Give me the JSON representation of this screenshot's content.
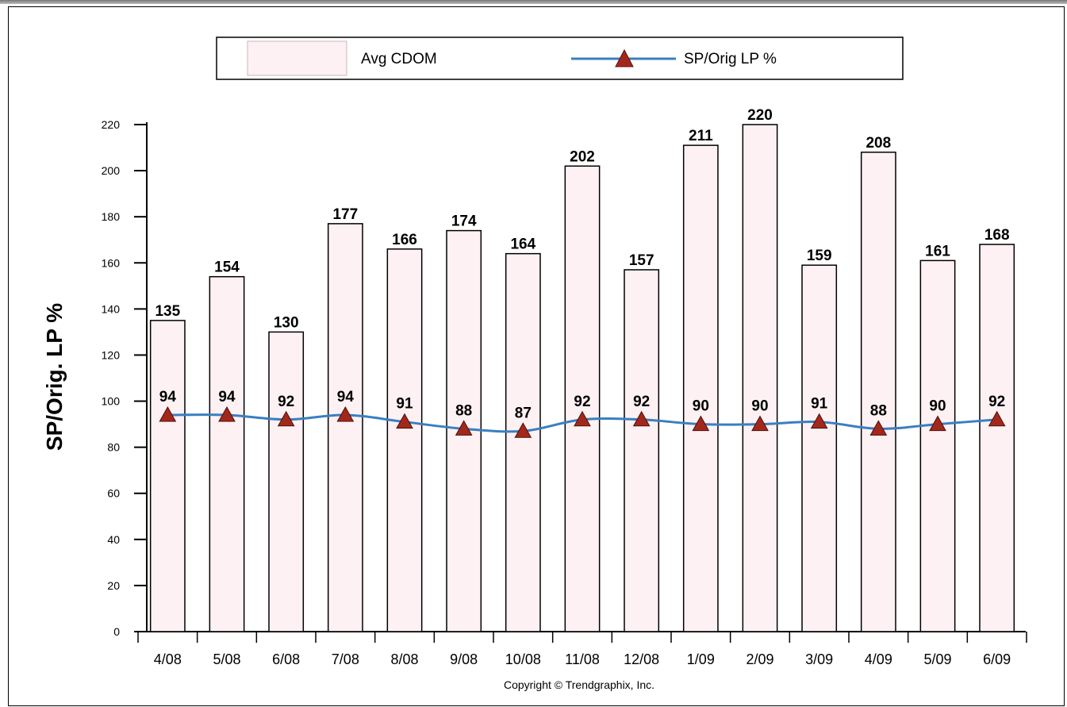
{
  "chart_data": {
    "type": "bar",
    "title": "",
    "xlabel": "",
    "ylabel": "SP/Orig. LP %",
    "ylim": [
      0,
      220
    ],
    "yticks": [
      0,
      20,
      40,
      60,
      80,
      100,
      120,
      140,
      160,
      180,
      200,
      220
    ],
    "grid": false,
    "legend_position": "top",
    "categories": [
      "4/08",
      "5/08",
      "6/08",
      "7/08",
      "8/08",
      "9/08",
      "10/08",
      "11/08",
      "12/08",
      "1/09",
      "2/09",
      "3/09",
      "4/09",
      "5/09",
      "6/09"
    ],
    "series": [
      {
        "name": "Avg CDOM",
        "kind": "bar",
        "color": "#fdf1f3",
        "values": [
          135,
          154,
          130,
          177,
          166,
          174,
          164,
          202,
          157,
          211,
          220,
          159,
          208,
          161,
          168
        ]
      },
      {
        "name": "SP/Orig LP %",
        "kind": "line",
        "color": "#3a7fc1",
        "marker_color": "#a3281c",
        "values": [
          94,
          94,
          92,
          94,
          91,
          88,
          87,
          92,
          92,
          90,
          90,
          91,
          88,
          90,
          92
        ]
      }
    ]
  },
  "legend": {
    "bar_label": "Avg CDOM",
    "line_label": "SP/Orig LP %"
  },
  "footer": {
    "copyright": "Copyright © Trendgraphix, Inc."
  }
}
